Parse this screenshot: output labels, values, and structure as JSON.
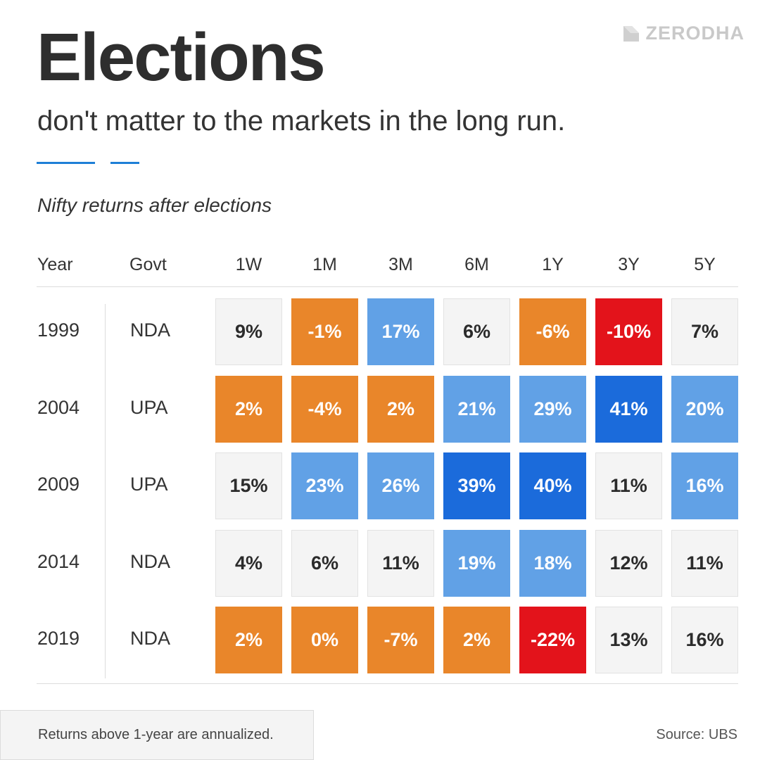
{
  "brand": {
    "logo_text": "ZERODHA",
    "logo_icon": "zerodha-kite-icon"
  },
  "header": {
    "title": "Elections",
    "subtitle": "don't matter to the markets in the long run."
  },
  "caption": "Nifty returns after elections",
  "colors": {
    "accent": "#1e7fd6",
    "negative_orange": "#e9862a",
    "negative_red": "#e3131b",
    "positive_light_blue": "#61a1e6",
    "positive_dark_blue": "#1b6bdb",
    "neutral": "#f4f4f4"
  },
  "chart_data": {
    "type": "heatmap",
    "title": "Nifty returns after elections",
    "columns": [
      "Year",
      "Govt",
      "1W",
      "1M",
      "3M",
      "6M",
      "1Y",
      "3Y",
      "5Y"
    ],
    "periods": [
      "1W",
      "1M",
      "3M",
      "6M",
      "1Y",
      "3Y",
      "5Y"
    ],
    "rows": [
      {
        "year": "1999",
        "govt": "NDA",
        "values": [
          "9%",
          "-1%",
          "17%",
          "6%",
          "-6%",
          "-10%",
          "7%"
        ],
        "tones": [
          "neutral",
          "orange",
          "lightblue",
          "neutral",
          "orange",
          "red",
          "neutral"
        ]
      },
      {
        "year": "2004",
        "govt": "UPA",
        "values": [
          "2%",
          "-4%",
          "2%",
          "21%",
          "29%",
          "41%",
          "20%"
        ],
        "tones": [
          "orange",
          "orange",
          "orange",
          "lightblue",
          "lightblue",
          "darkblue",
          "lightblue"
        ]
      },
      {
        "year": "2009",
        "govt": "UPA",
        "values": [
          "15%",
          "23%",
          "26%",
          "39%",
          "40%",
          "11%",
          "16%"
        ],
        "tones": [
          "neutral",
          "lightblue",
          "lightblue",
          "darkblue",
          "darkblue",
          "neutral",
          "lightblue"
        ]
      },
      {
        "year": "2014",
        "govt": "NDA",
        "values": [
          "4%",
          "6%",
          "11%",
          "19%",
          "18%",
          "12%",
          "11%"
        ],
        "tones": [
          "neutral",
          "neutral",
          "neutral",
          "lightblue",
          "lightblue",
          "neutral",
          "neutral"
        ]
      },
      {
        "year": "2019",
        "govt": "NDA",
        "values": [
          "2%",
          "0%",
          "-7%",
          "2%",
          "-22%",
          "13%",
          "16%"
        ],
        "tones": [
          "orange",
          "orange",
          "orange",
          "orange",
          "red",
          "neutral",
          "neutral"
        ]
      }
    ]
  },
  "footer": {
    "note": "Returns above 1-year are annualized.",
    "source": "Source: UBS"
  }
}
